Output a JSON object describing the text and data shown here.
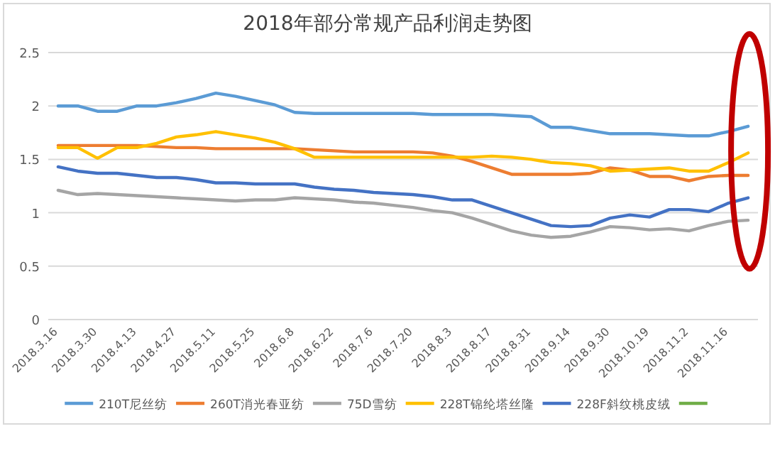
{
  "chart_data": {
    "type": "line",
    "title": "2018年部分常规产品利润走势图",
    "categories": [
      "2018.3.16",
      null,
      "2018.3.30",
      null,
      "2018.4.13",
      null,
      "2018.4.27",
      null,
      "2018.5.11",
      null,
      "2018.5.25",
      null,
      "2018.6.8",
      null,
      "2018.6.22",
      null,
      "2018.7.6",
      null,
      "2018.7.20",
      null,
      "2018.8.3",
      null,
      "2018.8.17",
      null,
      "2018.8.31",
      null,
      "2018.9.14",
      null,
      "2018.9.30",
      null,
      "2018.10.19",
      null,
      "2018.11.2",
      null,
      "2018.11.16",
      null
    ],
    "ylim": [
      0,
      2.5
    ],
    "yticks": [
      0,
      0.5,
      1,
      1.5,
      2,
      2.5
    ],
    "grid": "y",
    "legend": "bottom",
    "marker": "none",
    "line_style": "solid",
    "series": [
      {
        "name": "210T尼丝纺",
        "color": "#5b9bd5",
        "values": [
          2.0,
          2.0,
          1.95,
          1.95,
          2.0,
          2.0,
          2.03,
          2.07,
          2.12,
          2.09,
          2.05,
          2.01,
          1.94,
          1.93,
          1.93,
          1.93,
          1.93,
          1.93,
          1.93,
          1.92,
          1.92,
          1.92,
          1.92,
          1.91,
          1.9,
          1.8,
          1.8,
          1.77,
          1.74,
          1.74,
          1.74,
          1.73,
          1.72,
          1.72,
          1.76,
          1.81
        ]
      },
      {
        "name": "260T消光春亚纺",
        "color": "#ed7d31",
        "values": [
          1.63,
          1.63,
          1.63,
          1.63,
          1.63,
          1.62,
          1.61,
          1.61,
          1.6,
          1.6,
          1.6,
          1.6,
          1.6,
          1.59,
          1.58,
          1.57,
          1.57,
          1.57,
          1.57,
          1.56,
          1.53,
          1.48,
          1.42,
          1.36,
          1.36,
          1.36,
          1.36,
          1.37,
          1.42,
          1.4,
          1.34,
          1.34,
          1.3,
          1.34,
          1.35,
          1.35
        ]
      },
      {
        "name": "75D雪纺",
        "color": "#a5a5a5",
        "values": [
          1.21,
          1.17,
          1.18,
          1.17,
          1.16,
          1.15,
          1.14,
          1.13,
          1.12,
          1.11,
          1.12,
          1.12,
          1.14,
          1.13,
          1.12,
          1.1,
          1.09,
          1.07,
          1.05,
          1.02,
          1.0,
          0.95,
          0.89,
          0.83,
          0.79,
          0.77,
          0.78,
          0.82,
          0.87,
          0.86,
          0.84,
          0.85,
          0.83,
          0.88,
          0.92,
          0.93
        ]
      },
      {
        "name": "228T锦纶塔丝隆",
        "color": "#ffc000",
        "values": [
          1.61,
          1.61,
          1.51,
          1.61,
          1.61,
          1.65,
          1.71,
          1.73,
          1.76,
          1.73,
          1.7,
          1.66,
          1.6,
          1.52,
          1.52,
          1.52,
          1.52,
          1.52,
          1.52,
          1.52,
          1.52,
          1.52,
          1.53,
          1.52,
          1.5,
          1.47,
          1.46,
          1.44,
          1.39,
          1.4,
          1.41,
          1.42,
          1.39,
          1.39,
          1.47,
          1.56
        ]
      },
      {
        "name": "228F斜纹桃皮绒",
        "color": "#4472c4",
        "values": [
          1.43,
          1.39,
          1.37,
          1.37,
          1.35,
          1.33,
          1.33,
          1.31,
          1.28,
          1.28,
          1.27,
          1.27,
          1.27,
          1.24,
          1.22,
          1.21,
          1.19,
          1.18,
          1.17,
          1.15,
          1.12,
          1.12,
          1.06,
          1.0,
          0.94,
          0.88,
          0.87,
          0.88,
          0.95,
          0.98,
          0.96,
          1.03,
          1.03,
          1.01,
          1.09,
          1.14
        ]
      },
      {
        "color": "#70ad47",
        "values": [
          null,
          null,
          null,
          null,
          null,
          null,
          null,
          null,
          null,
          null,
          null,
          null,
          null,
          null,
          null,
          null,
          null,
          null,
          null,
          null,
          null,
          null,
          null,
          null,
          null,
          null,
          null,
          null,
          null,
          null,
          null,
          null,
          null,
          null,
          null,
          null
        ]
      }
    ]
  }
}
